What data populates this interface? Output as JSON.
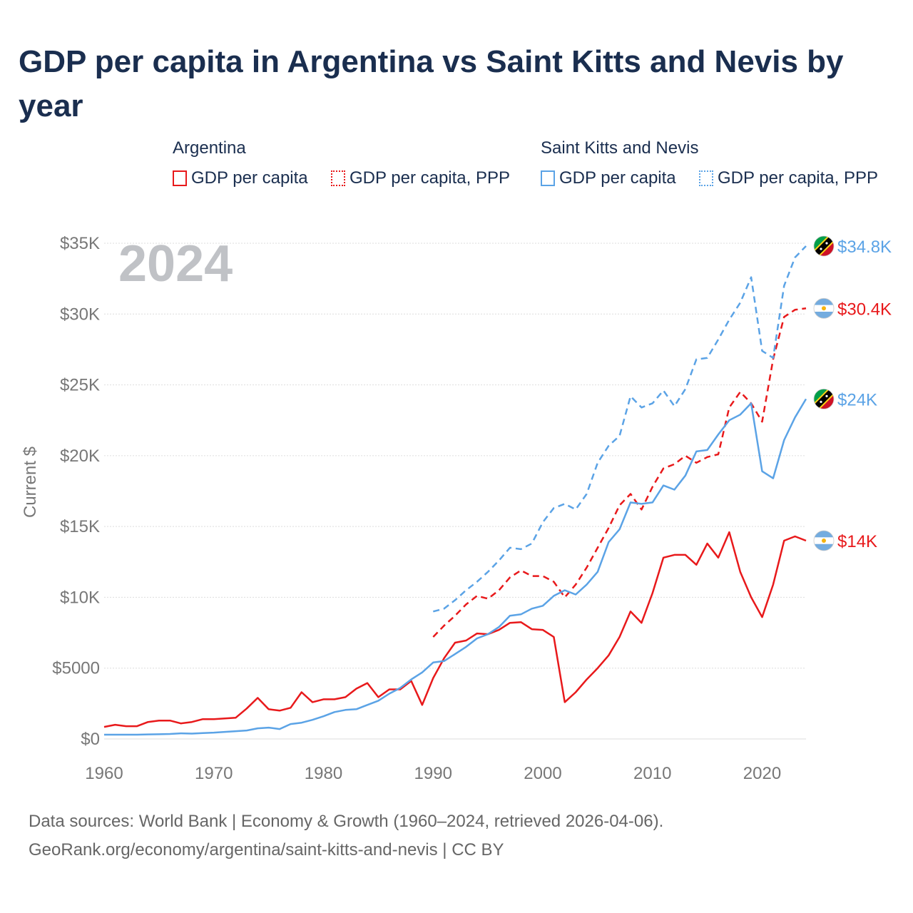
{
  "title": "GDP per capita in Argentina vs Saint Kitts and Nevis by year",
  "legend": {
    "groups": [
      {
        "name": "Argentina",
        "items": [
          "GDP per capita",
          "GDP per capita, PPP"
        ]
      },
      {
        "name": "Saint Kitts and Nevis",
        "items": [
          "GDP per capita",
          "GDP per capita, PPP"
        ]
      }
    ]
  },
  "footer": {
    "line1": "Data sources: World Bank | Economy & Growth (1960–2024, retrieved 2026-04-06).",
    "line2": "GeoRank.org/economy/argentina/saint-kitts-and-nevis | CC BY"
  },
  "colors": {
    "argentina": "#e8191b",
    "skn": "#5ba3e6",
    "grid": "#dddddd",
    "axis_text": "#777777",
    "year_label": "#c0c2c6"
  },
  "chart_data": {
    "type": "line",
    "year_label": "2024",
    "ylabel": "Current $",
    "xlim": [
      1960,
      2024
    ],
    "ylim": [
      0,
      35000
    ],
    "x_ticks": [
      1960,
      1970,
      1980,
      1990,
      2000,
      2010,
      2020
    ],
    "y_ticks": [
      {
        "value": 0,
        "label": "$0"
      },
      {
        "value": 5000,
        "label": "$5000"
      },
      {
        "value": 10000,
        "label": "$10K"
      },
      {
        "value": 15000,
        "label": "$15K"
      },
      {
        "value": 20000,
        "label": "$20K"
      },
      {
        "value": 25000,
        "label": "$25K"
      },
      {
        "value": 30000,
        "label": "$30K"
      },
      {
        "value": 35000,
        "label": "$35K"
      }
    ],
    "series": [
      {
        "name": "Argentina GDP per capita",
        "country": "argentina",
        "style": "solid",
        "end_label": "$14K",
        "start_year": 1960,
        "values": [
          850,
          1000,
          900,
          900,
          1200,
          1300,
          1300,
          1100,
          1200,
          1400,
          1400,
          1450,
          1500,
          2150,
          2900,
          2100,
          2000,
          2200,
          3300,
          2600,
          2800,
          2800,
          2950,
          3550,
          3950,
          2950,
          3500,
          3500,
          4100,
          2400,
          4300,
          5700,
          6800,
          6950,
          7450,
          7400,
          7700,
          8200,
          8250,
          7750,
          7700,
          7200,
          2600,
          3300,
          4200,
          5000,
          5900,
          7200,
          9000,
          8200,
          10300,
          12800,
          13000,
          13000,
          12300,
          13800,
          12800,
          14600,
          11800,
          10000,
          8600,
          10900,
          14000,
          14300,
          14000
        ]
      },
      {
        "name": "Argentina GDP per capita, PPP",
        "country": "argentina",
        "style": "dashed",
        "end_label": "$30.4K",
        "start_year": 1990,
        "values": [
          7200,
          8000,
          8700,
          9500,
          10100,
          9900,
          10500,
          11400,
          11900,
          11500,
          11500,
          11100,
          10000,
          10900,
          12100,
          13500,
          14900,
          16500,
          17300,
          16200,
          17800,
          19100,
          19400,
          20000,
          19500,
          19900,
          20100,
          23400,
          24500,
          23700,
          22400,
          26800,
          29800,
          30300,
          30400
        ]
      },
      {
        "name": "Saint Kitts and Nevis GDP per capita",
        "country": "skn",
        "style": "solid",
        "end_label": "$24K",
        "start_year": 1960,
        "values": [
          300,
          300,
          300,
          300,
          320,
          330,
          350,
          400,
          380,
          420,
          450,
          500,
          550,
          600,
          750,
          800,
          700,
          1050,
          1150,
          1350,
          1600,
          1900,
          2050,
          2100,
          2400,
          2700,
          3200,
          3600,
          4200,
          4700,
          5400,
          5500,
          6000,
          6500,
          7100,
          7400,
          7900,
          8700,
          8800,
          9200,
          9400,
          10100,
          10500,
          10200,
          10900,
          11800,
          13900,
          14800,
          16700,
          16600,
          16700,
          17900,
          17600,
          18600,
          20300,
          20400,
          21500,
          22500,
          22900,
          23700,
          18900,
          18400,
          21100,
          22700,
          24000
        ]
      },
      {
        "name": "Saint Kitts and Nevis GDP per capita, PPP",
        "country": "skn",
        "style": "dashed",
        "end_label": "$34.8K",
        "start_year": 1990,
        "values": [
          9000,
          9200,
          9800,
          10500,
          11100,
          11800,
          12600,
          13500,
          13400,
          13800,
          15300,
          16300,
          16600,
          16200,
          17300,
          19500,
          20700,
          21400,
          24200,
          23400,
          23700,
          24600,
          23500,
          24700,
          26800,
          26900,
          28200,
          29600,
          30800,
          32600,
          27400,
          26900,
          32000,
          34000,
          34800
        ]
      }
    ]
  }
}
